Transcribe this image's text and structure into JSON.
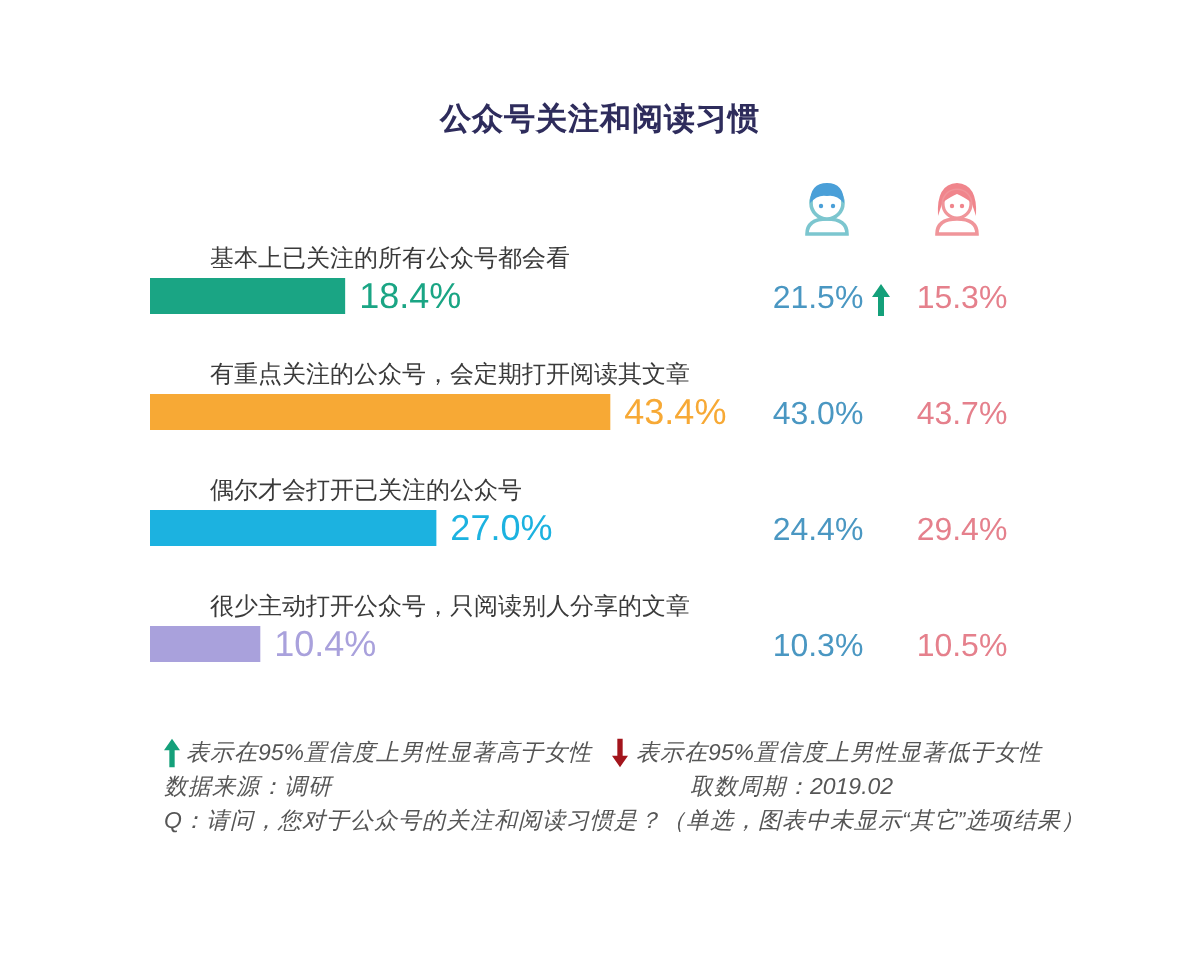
{
  "chart_data": [
    {
      "type": "bar",
      "orientation": "horizontal",
      "title": "公众号关注和阅读习惯",
      "categories": [
        "基本上已关注的所有公众号都会看",
        "有重点关注的公众号，会定期打开阅读其文章",
        "偶尔才会打开已关注的公众号",
        "很少主动打开公众号，只阅读别人分享的文章"
      ],
      "series": [
        {
          "values": [
            18.4,
            43.4,
            27.0,
            10.4
          ],
          "colors": [
            "#1aa584",
            "#f7a935",
            "#1cb2e0",
            "#a9a1dc"
          ],
          "value_labels": [
            "18.4%",
            "43.4%",
            "27.0%",
            "10.4%"
          ]
        }
      ],
      "annotations": [
        "表示在95%置信度上男性显著高于女性",
        "表示在95%置信度上男性显著低于女性",
        "数据来源：调研",
        "取数周期：2019.02",
        "Q：请问，您对于公众号的关注和阅读习惯是？（单选，图表中未显示“其它”选项结果）"
      ]
    },
    {
      "type": "other",
      "annotations": [
        "21.5%",
        "15.3%",
        "43.0%",
        "43.7%",
        "24.4%",
        "29.4%",
        "10.3%",
        "10.5%"
      ]
    }
  ]
}
